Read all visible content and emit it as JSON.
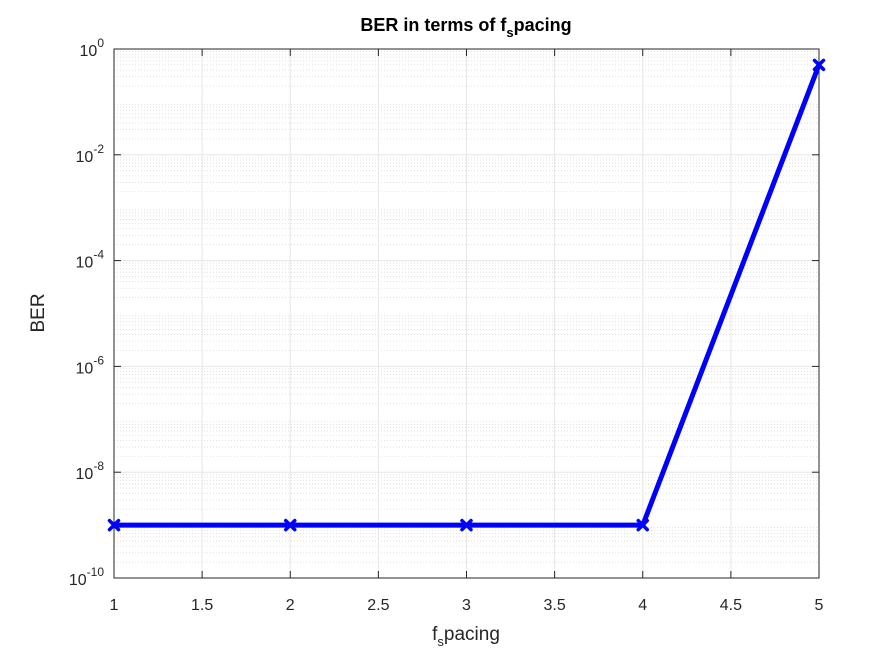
{
  "chart_data": {
    "type": "line",
    "title": "BER in terms of f_spacing",
    "title_parts": {
      "before": "BER in terms of f",
      "subscript": "s",
      "after": "pacing"
    },
    "xlabel": "f_spacing",
    "xlabel_parts": {
      "before": "f",
      "subscript": "s",
      "after": "pacing"
    },
    "ylabel": "BER",
    "xlim": [
      1,
      5
    ],
    "ylim": [
      1e-10,
      1
    ],
    "yscale": "log",
    "grid": true,
    "minor_grid": true,
    "xticks": [
      "1",
      "1.5",
      "2",
      "2.5",
      "3",
      "3.5",
      "4",
      "4.5",
      "5"
    ],
    "yticks": [
      {
        "base": "10",
        "exp": "-10"
      },
      {
        "base": "10",
        "exp": "-8"
      },
      {
        "base": "10",
        "exp": "-6"
      },
      {
        "base": "10",
        "exp": "-4"
      },
      {
        "base": "10",
        "exp": "-2"
      },
      {
        "base": "10",
        "exp": "0"
      }
    ],
    "series": [
      {
        "color": "#0000ff",
        "marker": "x",
        "x": [
          1,
          2,
          3,
          4,
          5
        ],
        "y": [
          1e-09,
          1e-09,
          1e-09,
          1e-09,
          0.5
        ]
      }
    ]
  }
}
